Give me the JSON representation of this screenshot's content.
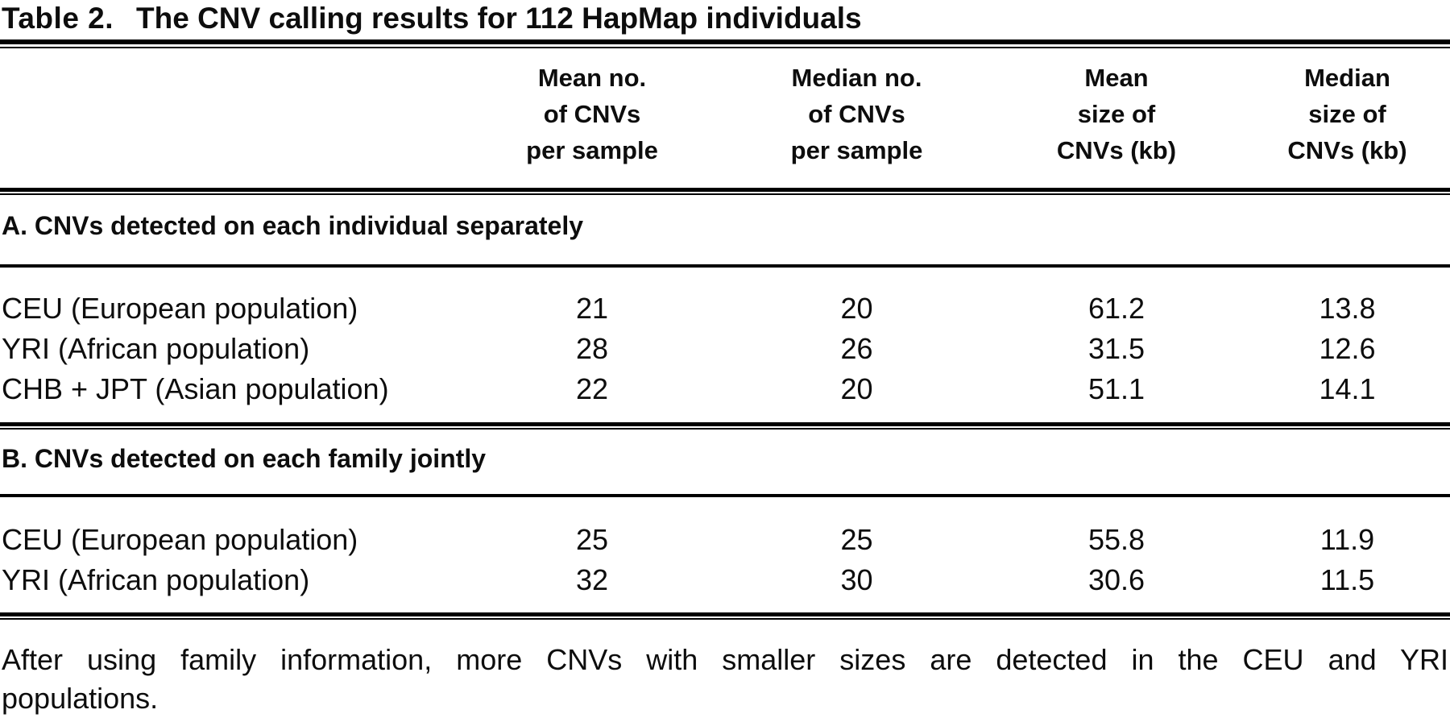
{
  "title": {
    "label": "Table 2.",
    "caption": "The CNV calling results for 112 HapMap individuals"
  },
  "column_headers": [
    {
      "lines": [
        "Mean no.",
        "of CNVs",
        "per sample"
      ]
    },
    {
      "lines": [
        "Median no.",
        "of CNVs",
        "per sample"
      ]
    },
    {
      "lines": [
        "Mean",
        "size of",
        "CNVs (kb)"
      ]
    },
    {
      "lines": [
        "Median",
        "size of",
        "CNVs (kb)"
      ]
    }
  ],
  "sections": [
    {
      "heading": "A. CNVs detected on each individual separately",
      "rows": [
        {
          "label": "CEU (European population)",
          "values": [
            "21",
            "20",
            "61.2",
            "13.8"
          ]
        },
        {
          "label": "YRI (African population)",
          "values": [
            "28",
            "26",
            "31.5",
            "12.6"
          ]
        },
        {
          "label": "CHB + JPT (Asian population)",
          "values": [
            "22",
            "20",
            "51.1",
            "14.1"
          ]
        }
      ]
    },
    {
      "heading": "B. CNVs detected on each family jointly",
      "rows": [
        {
          "label": "CEU (European population)",
          "values": [
            "25",
            "25",
            "55.8",
            "11.9"
          ]
        },
        {
          "label": "YRI (African population)",
          "values": [
            "32",
            "30",
            "30.6",
            "11.5"
          ]
        }
      ]
    }
  ],
  "footnote": {
    "line1": "After using family information, more CNVs with smaller sizes are detected in the CEU and YRI",
    "line2": "populations."
  },
  "colors": {
    "text": "#0d0d0d",
    "rule": "#000000",
    "background": "#ffffff"
  }
}
